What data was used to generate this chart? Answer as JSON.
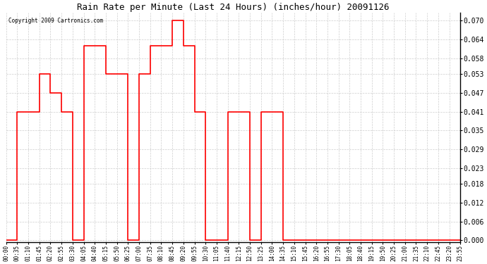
{
  "title": "Rain Rate per Minute (Last 24 Hours) (inches/hour) 20091126",
  "copyright": "Copyright 2009 Cartronics.com",
  "background_color": "#ffffff",
  "line_color": "#ff0000",
  "grid_color": "#c8c8c8",
  "yticks": [
    0.0,
    0.006,
    0.012,
    0.018,
    0.023,
    0.029,
    0.035,
    0.041,
    0.047,
    0.053,
    0.058,
    0.064,
    0.07
  ],
  "time_labels": [
    "00:00",
    "00:35",
    "01:10",
    "01:45",
    "02:20",
    "02:55",
    "03:30",
    "04:05",
    "04:40",
    "05:15",
    "05:50",
    "06:25",
    "07:00",
    "07:35",
    "08:10",
    "08:45",
    "09:20",
    "09:55",
    "10:30",
    "11:05",
    "11:40",
    "12:15",
    "12:50",
    "13:25",
    "14:00",
    "14:35",
    "15:10",
    "15:45",
    "16:20",
    "16:55",
    "17:30",
    "18:05",
    "18:40",
    "19:15",
    "19:50",
    "20:25",
    "21:00",
    "21:35",
    "22:10",
    "22:45",
    "23:20",
    "23:55"
  ],
  "segment_values": [
    0.0,
    0.041,
    0.041,
    0.053,
    0.047,
    0.041,
    0.0,
    0.062,
    0.062,
    0.053,
    0.053,
    0.0,
    0.053,
    0.062,
    0.062,
    0.07,
    0.062,
    0.041,
    0.0,
    0.0,
    0.041,
    0.041,
    0.0,
    0.041,
    0.041,
    0.0,
    0.0,
    0.0,
    0.0,
    0.0,
    0.0,
    0.0,
    0.0,
    0.0,
    0.0,
    0.0,
    0.0,
    0.0,
    0.0,
    0.0,
    0.0,
    0.0
  ]
}
